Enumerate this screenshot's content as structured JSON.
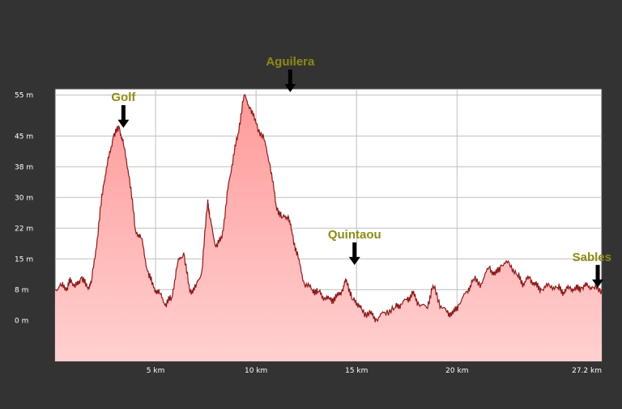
{
  "chart_data": {
    "type": "area",
    "xlabel": "",
    "ylabel": "",
    "xlim": [
      0,
      27.2
    ],
    "ylim": [
      -10,
      56.5
    ],
    "grid": true,
    "x_ticks": [
      {
        "value": 5,
        "label": "5 km"
      },
      {
        "value": 10,
        "label": "10 km"
      },
      {
        "value": 15,
        "label": "15 km"
      },
      {
        "value": 20,
        "label": "20 km"
      },
      {
        "value": 27.2,
        "label": "27.2 km"
      }
    ],
    "y_ticks": [
      {
        "value": 0,
        "label": "0 m"
      },
      {
        "value": 7.5,
        "label": "8 m"
      },
      {
        "value": 15,
        "label": "15 m"
      },
      {
        "value": 22.5,
        "label": "22 m"
      },
      {
        "value": 30,
        "label": "30 m"
      },
      {
        "value": 37.5,
        "label": "38 m"
      },
      {
        "value": 45,
        "label": "45 m"
      },
      {
        "value": 55,
        "label": "55 m"
      }
    ],
    "series": [
      {
        "x": [
          0,
          0.3,
          0.6,
          0.8,
          1.0,
          1.3,
          1.6,
          1.8,
          2.1,
          2.4,
          2.6,
          2.9,
          3.2,
          3.4,
          3.7,
          4.0,
          4.3,
          4.6,
          4.9,
          5.2,
          5.5,
          5.8,
          6.1,
          6.4,
          6.7,
          7.0,
          7.3,
          7.6,
          7.7,
          8.0,
          8.3,
          8.6,
          8.8,
          9.1,
          9.4,
          9.7,
          10.0,
          10.4,
          10.7,
          11.0,
          11.3,
          11.6,
          11.8,
          12.1,
          12.4,
          12.8,
          13.1,
          13.4,
          13.7,
          14.0,
          14.3,
          14.5,
          14.8,
          15.1,
          15.3,
          15.7,
          16.0,
          16.4,
          16.9,
          17.2,
          17.5,
          17.8,
          18.1,
          18.5,
          18.8,
          19.2,
          19.5,
          19.8,
          20.1,
          20.5,
          20.8,
          21.2,
          21.6,
          21.9,
          22.2,
          22.6,
          23.0,
          23.3,
          23.6,
          23.9,
          24.2,
          24.6,
          25.0,
          25.3,
          25.6,
          25.9,
          26.2,
          26.5,
          26.8,
          27.2
        ],
        "values": [
          7.5,
          8.5,
          8.0,
          10.0,
          8.0,
          10.5,
          8.0,
          9.0,
          20.0,
          33.0,
          38.0,
          45.0,
          47.0,
          43.0,
          35.0,
          22.0,
          20.0,
          12.0,
          8.0,
          6.5,
          4.0,
          5.5,
          14.0,
          16.5,
          7.0,
          8.0,
          12.0,
          29.5,
          25.0,
          18.0,
          20.0,
          32.0,
          38.0,
          45.5,
          55.0,
          52.0,
          48.0,
          44.0,
          38.0,
          28.0,
          25.0,
          25.5,
          21.0,
          15.0,
          9.0,
          7.5,
          7.0,
          5.5,
          5.0,
          5.5,
          7.5,
          10.0,
          5.0,
          4.0,
          2.0,
          1.5,
          0.2,
          2.0,
          3.0,
          4.0,
          5.0,
          6.5,
          4.0,
          3.0,
          8.5,
          3.5,
          2.0,
          1.5,
          4.0,
          7.0,
          10.0,
          9.0,
          13.0,
          11.0,
          13.5,
          14.0,
          11.0,
          9.0,
          10.5,
          8.5,
          7.5,
          8.5,
          8.0,
          7.0,
          8.0,
          7.5,
          8.0,
          8.5,
          8.0,
          7.5
        ]
      }
    ],
    "annotations": [
      {
        "label": "Golf",
        "x": 3.4,
        "y": 47.0
      },
      {
        "label": "Aguilera",
        "x": 11.7,
        "y": 55.7
      },
      {
        "label": "Quintaou",
        "x": 14.9,
        "y": 13.5
      },
      {
        "label": "Sables",
        "x": 27.0,
        "y": 8.0
      }
    ]
  },
  "colors": {
    "background": "#333333",
    "plot_background": "#ffffff",
    "area_fill_top": "#ff9a9a",
    "area_fill_bottom": "#ffd0d0",
    "line": "#8b1a1a",
    "grid": "#bfbfbf",
    "tick_text": "#ffffff",
    "marker_label": "#8c8c14",
    "arrow": "#000000"
  }
}
